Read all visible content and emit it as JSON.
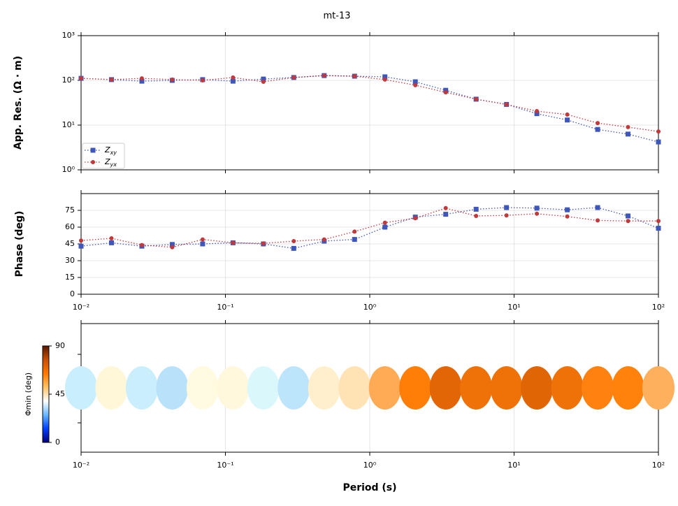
{
  "chart_data": [
    {
      "type": "line",
      "title": "mt-13",
      "ylabel": "App. Res. (Ω · m)",
      "xscale": "log",
      "yscale": "log",
      "xlim": [
        0.01,
        100
      ],
      "xticks": [
        0.01,
        0.1,
        1,
        10,
        100
      ],
      "ylim": [
        1,
        1000
      ],
      "yticks": [
        {
          "value": 1,
          "label": "10⁰"
        },
        {
          "value": 10,
          "label": "10¹"
        },
        {
          "value": 100,
          "label": "10²"
        },
        {
          "value": 1000,
          "label": "10³"
        }
      ],
      "grid": true,
      "legend": "lower left",
      "x": [
        0.01,
        0.01624,
        0.02637,
        0.04281,
        0.06952,
        0.1129,
        0.1833,
        0.2976,
        0.4833,
        0.7848,
        1.274,
        2.069,
        3.36,
        5.456,
        8.859,
        14.38,
        23.36,
        37.93,
        61.58,
        100
      ],
      "series": [
        {
          "name": "Zxy",
          "color": "#3f57b8",
          "marker": "square",
          "values": [
            111,
            104,
            96,
            100,
            104,
            96,
            107,
            116,
            128,
            124,
            120,
            93,
            60,
            38,
            29,
            18,
            13,
            8,
            6.3,
            4.2
          ]
        },
        {
          "name": "Zyx",
          "color": "#c0393b",
          "marker": "circle",
          "values": [
            111,
            104,
            111,
            104,
            100,
            116,
            93,
            116,
            128,
            124,
            104,
            78,
            54,
            38,
            29,
            20.5,
            17.2,
            11.1,
            9,
            7.2
          ]
        }
      ]
    },
    {
      "type": "line",
      "ylabel": "Phase (deg)",
      "xscale": "log",
      "xlim": [
        0.01,
        100
      ],
      "xticks": [
        {
          "value": 0.01,
          "label": "10⁻²"
        },
        {
          "value": 0.1,
          "label": "10⁻¹"
        },
        {
          "value": 1,
          "label": "10⁰"
        },
        {
          "value": 10,
          "label": "10¹"
        },
        {
          "value": 100,
          "label": "10²"
        }
      ],
      "ylim": [
        0,
        90
      ],
      "yticks": [
        0,
        15,
        30,
        45,
        60,
        75
      ],
      "grid": true,
      "x": [
        0.01,
        0.01624,
        0.02637,
        0.04281,
        0.06952,
        0.1129,
        0.1833,
        0.2976,
        0.4833,
        0.7848,
        1.274,
        2.069,
        3.36,
        5.456,
        8.859,
        14.38,
        23.36,
        37.93,
        61.58,
        100
      ],
      "series": [
        {
          "color": "#3f57b8",
          "marker": "square",
          "values": [
            43,
            46,
            43,
            44.5,
            45,
            46,
            45,
            41,
            47.5,
            49,
            60,
            69,
            71.5,
            76,
            77.5,
            77,
            75.5,
            77.5,
            70,
            59
          ]
        },
        {
          "color": "#c0393b",
          "marker": "circle",
          "values": [
            48,
            50,
            44,
            42,
            49,
            46,
            45.5,
            47.5,
            49,
            56,
            64,
            68,
            77,
            70,
            70.5,
            72,
            69.5,
            66,
            65.5,
            65.5
          ]
        }
      ]
    },
    {
      "type": "ellipse",
      "xlabel": "Period (s)",
      "xscale": "log",
      "xlim": [
        0.01,
        100
      ],
      "xticks": [
        {
          "value": 0.01,
          "label": "10⁻²"
        },
        {
          "value": 0.1,
          "label": "10⁻¹"
        },
        {
          "value": 1,
          "label": "10⁰"
        },
        {
          "value": 10,
          "label": "10¹"
        },
        {
          "value": 100,
          "label": "10²"
        }
      ],
      "grid": true,
      "x": [
        0.01,
        0.01624,
        0.02637,
        0.04281,
        0.06952,
        0.1129,
        0.1833,
        0.2976,
        0.4833,
        0.7848,
        1.274,
        2.069,
        3.36,
        5.456,
        8.859,
        14.38,
        23.36,
        37.93,
        61.58,
        100
      ],
      "values": [
        40,
        48,
        39,
        37,
        47,
        48,
        42,
        37,
        50,
        52,
        60,
        68,
        72,
        70,
        70,
        72,
        69,
        67,
        67,
        60
      ],
      "colors": [
        "#c9eefc",
        "#fff7d8",
        "#caeefc",
        "#b8e2fa",
        "#fffae0",
        "#fff8dc",
        "#daf8fc",
        "#bce4fa",
        "#ffefcc",
        "#ffe3b5",
        "#ffab55",
        "#ff7e08",
        "#e26605",
        "#ee7208",
        "#ee7208",
        "#e06505",
        "#ee7208",
        "#ff8210",
        "#ff820c",
        "#ffb05c"
      ],
      "colorbar": {
        "label": "Φmin (deg)",
        "lim": [
          0,
          90
        ],
        "ticks": [
          0,
          45,
          90
        ],
        "colormap": [
          "#00007a",
          "#0040ff",
          "#66b8ff",
          "#ffffff",
          "#ffc266",
          "#ff7a00",
          "#c85000",
          "#5a1800"
        ]
      }
    }
  ]
}
